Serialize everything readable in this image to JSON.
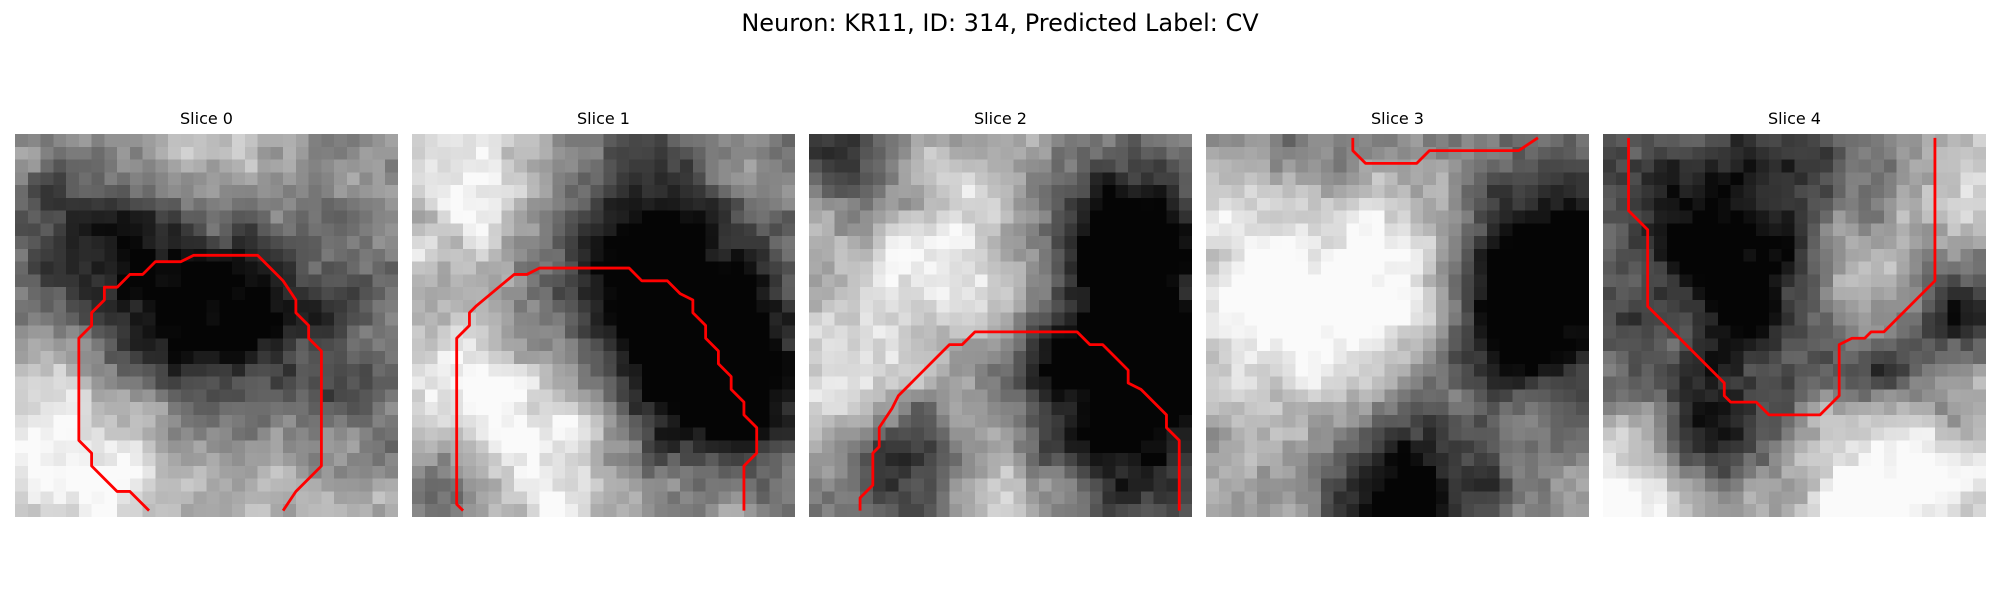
{
  "figure": {
    "title": "Neuron: KR11, ID: 314, Predicted Label: CV",
    "contour_color": "#ff0000",
    "colormap": "grayscale",
    "grid_size": 30
  },
  "slices": [
    {
      "title": "Slice 0",
      "seed": 11,
      "dark_blobs": [
        [
          15,
          13,
          7.5,
          0.75
        ],
        [
          5,
          8,
          4,
          0.35
        ],
        [
          27,
          22,
          4,
          0.35
        ]
      ],
      "light_blobs": [
        [
          5,
          25,
          6,
          0.45
        ],
        [
          15,
          2,
          5,
          0.35
        ],
        [
          24,
          24,
          5,
          0.3
        ]
      ],
      "contour": [
        [
          10.5,
          29.5
        ],
        [
          9,
          28
        ],
        [
          8,
          28
        ],
        [
          7,
          27
        ],
        [
          6,
          26
        ],
        [
          6,
          25
        ],
        [
          5,
          24
        ],
        [
          5,
          16
        ],
        [
          6,
          15
        ],
        [
          6,
          14
        ],
        [
          7,
          13
        ],
        [
          7,
          12
        ],
        [
          8,
          12
        ],
        [
          9,
          11
        ],
        [
          10,
          11
        ],
        [
          11,
          10
        ],
        [
          13,
          10
        ],
        [
          14,
          9.5
        ],
        [
          19,
          9.5
        ],
        [
          20,
          10.5
        ],
        [
          21,
          11.5
        ],
        [
          22,
          13
        ],
        [
          22,
          14
        ],
        [
          23,
          15
        ],
        [
          23,
          16
        ],
        [
          24,
          17
        ],
        [
          24,
          26
        ],
        [
          23,
          27
        ],
        [
          22,
          28
        ],
        [
          21,
          29.5
        ]
      ]
    },
    {
      "title": "Slice 1",
      "seed": 23,
      "dark_blobs": [
        [
          18,
          11,
          8.5,
          0.85
        ],
        [
          24,
          20,
          5,
          0.5
        ],
        [
          3,
          27,
          3,
          0.4
        ]
      ],
      "light_blobs": [
        [
          8,
          22,
          6.5,
          0.6
        ],
        [
          6,
          4,
          6,
          0.45
        ],
        [
          26,
          4,
          4,
          0.3
        ]
      ],
      "contour": [
        [
          4,
          29.5
        ],
        [
          3.5,
          29
        ],
        [
          3.5,
          16
        ],
        [
          4.5,
          15
        ],
        [
          4.5,
          14
        ],
        [
          5,
          13.5
        ],
        [
          8,
          11
        ],
        [
          9,
          11
        ],
        [
          10,
          10.5
        ],
        [
          17,
          10.5
        ],
        [
          18,
          11.5
        ],
        [
          20,
          11.5
        ],
        [
          21,
          12.5
        ],
        [
          22,
          13
        ],
        [
          22,
          14
        ],
        [
          23,
          15
        ],
        [
          23,
          16
        ],
        [
          24,
          17
        ],
        [
          24,
          18
        ],
        [
          25,
          19
        ],
        [
          25,
          20
        ],
        [
          26,
          21
        ],
        [
          26,
          22
        ],
        [
          27,
          23
        ],
        [
          27,
          25
        ],
        [
          26,
          26
        ],
        [
          26,
          29.5
        ]
      ]
    },
    {
      "title": "Slice 2",
      "seed": 37,
      "dark_blobs": [
        [
          23,
          19,
          7.5,
          0.85
        ],
        [
          25,
          7,
          4.5,
          0.6
        ],
        [
          7,
          25,
          3.5,
          0.5
        ],
        [
          2,
          1,
          3,
          0.4
        ]
      ],
      "light_blobs": [
        [
          12,
          12,
          6,
          0.45
        ],
        [
          14,
          26,
          4,
          0.4
        ],
        [
          2,
          20,
          3,
          0.3
        ]
      ],
      "contour": [
        [
          4,
          29.5
        ],
        [
          4,
          28.5
        ],
        [
          5,
          27.5
        ],
        [
          5,
          25
        ],
        [
          5.5,
          24.5
        ],
        [
          5.5,
          23
        ],
        [
          6.5,
          21.5
        ],
        [
          7,
          20.5
        ],
        [
          8,
          19.5
        ],
        [
          9,
          18.5
        ],
        [
          10,
          17.5
        ],
        [
          11,
          16.5
        ],
        [
          12,
          16.5
        ],
        [
          13,
          15.5
        ],
        [
          21,
          15.5
        ],
        [
          22,
          16.5
        ],
        [
          23,
          16.5
        ],
        [
          24,
          17.5
        ],
        [
          25,
          18.5
        ],
        [
          25,
          19.5
        ],
        [
          26,
          20
        ],
        [
          27,
          21
        ],
        [
          28,
          22
        ],
        [
          28,
          23
        ],
        [
          29,
          24
        ],
        [
          29,
          29.5
        ]
      ]
    },
    {
      "title": "Slice 3",
      "seed": 53,
      "dark_blobs": [
        [
          27,
          10,
          6,
          0.8
        ],
        [
          15,
          28,
          5,
          0.75
        ],
        [
          22,
          14,
          4,
          0.5
        ],
        [
          6,
          3,
          4,
          0.35
        ]
      ],
      "light_blobs": [
        [
          8,
          12,
          7,
          0.5
        ],
        [
          18,
          12,
          4,
          0.35
        ],
        [
          3,
          4,
          3,
          0.3
        ]
      ],
      "contour": [
        [
          11.5,
          0.3
        ],
        [
          11.5,
          1.3
        ],
        [
          12.5,
          2.3
        ],
        [
          16.5,
          2.3
        ],
        [
          17.5,
          1.3
        ],
        [
          18.5,
          1.3
        ],
        [
          24.5,
          1.3
        ],
        [
          26,
          0.3
        ]
      ]
    },
    {
      "title": "Slice 4",
      "seed": 71,
      "dark_blobs": [
        [
          11,
          9,
          8,
          0.75
        ],
        [
          8,
          23,
          3,
          0.45
        ],
        [
          28,
          13,
          2.5,
          0.45
        ],
        [
          22,
          18,
          2.5,
          0.35
        ]
      ],
      "light_blobs": [
        [
          19,
          10,
          4,
          0.5
        ],
        [
          22,
          27,
          5,
          0.5
        ],
        [
          2,
          28,
          4,
          0.4
        ],
        [
          28,
          5,
          3,
          0.3
        ]
      ],
      "contour": [
        [
          2,
          0.3
        ],
        [
          2,
          6
        ],
        [
          3.5,
          7.5
        ],
        [
          3.5,
          13.5
        ],
        [
          9.5,
          19.5
        ],
        [
          9.5,
          20.5
        ],
        [
          10,
          21
        ],
        [
          12,
          21
        ],
        [
          13,
          22
        ],
        [
          17,
          22
        ],
        [
          18,
          21
        ],
        [
          18.5,
          20.5
        ],
        [
          18.5,
          16.5
        ],
        [
          19.5,
          16
        ],
        [
          20.5,
          16
        ],
        [
          21,
          15.5
        ],
        [
          22,
          15.5
        ],
        [
          26,
          11.5
        ],
        [
          26,
          0.3
        ]
      ]
    }
  ]
}
